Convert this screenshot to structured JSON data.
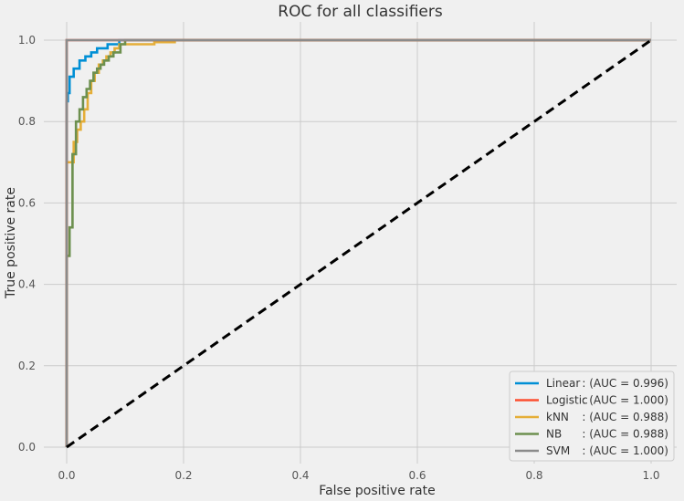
{
  "chart_data": {
    "type": "line",
    "title": "ROC for all classifiers",
    "xlabel": "False positive rate",
    "ylabel": "True positive rate",
    "xlim": [
      0.0,
      1.0
    ],
    "ylim": [
      0.0,
      1.0
    ],
    "xticks": [
      "0.0",
      "0.2",
      "0.4",
      "0.6",
      "0.8",
      "1.0"
    ],
    "yticks": [
      "0.0",
      "0.2",
      "0.4",
      "0.6",
      "0.8",
      "1.0"
    ],
    "grid": true,
    "legend_position": "lower-right",
    "series": [
      {
        "name": "Linear",
        "auc_label": ": (AUC = 0.996)",
        "color": "#008fd5",
        "x": [
          0.0,
          0.0,
          0.002,
          0.002,
          0.005,
          0.005,
          0.012,
          0.012,
          0.022,
          0.022,
          0.032,
          0.032,
          0.042,
          0.042,
          0.052,
          0.052,
          0.07,
          0.07,
          0.09,
          0.09,
          1.0
        ],
        "y": [
          0.0,
          0.85,
          0.85,
          0.87,
          0.87,
          0.91,
          0.91,
          0.93,
          0.93,
          0.95,
          0.95,
          0.96,
          0.96,
          0.97,
          0.97,
          0.98,
          0.98,
          0.99,
          0.99,
          1.0,
          1.0
        ]
      },
      {
        "name": "Logistic",
        "auc_label": ": (AUC = 1.000)",
        "color": "#fc4f30",
        "x": [
          0.0,
          0.0,
          1.0
        ],
        "y": [
          0.0,
          1.0,
          1.0
        ]
      },
      {
        "name": "kNN",
        "auc_label": ": (AUC = 0.988)",
        "color": "#e5ae38",
        "x": [
          0.0,
          0.0,
          0.012,
          0.012,
          0.018,
          0.018,
          0.024,
          0.024,
          0.03,
          0.03,
          0.036,
          0.036,
          0.042,
          0.042,
          0.048,
          0.048,
          0.055,
          0.055,
          0.062,
          0.062,
          0.068,
          0.068,
          0.075,
          0.075,
          0.082,
          0.082,
          0.09,
          0.09,
          0.15,
          0.15,
          0.185,
          0.185,
          1.0
        ],
        "y": [
          0.0,
          0.7,
          0.7,
          0.75,
          0.75,
          0.78,
          0.78,
          0.8,
          0.8,
          0.83,
          0.83,
          0.87,
          0.87,
          0.9,
          0.9,
          0.92,
          0.92,
          0.94,
          0.94,
          0.95,
          0.95,
          0.96,
          0.96,
          0.97,
          0.97,
          0.98,
          0.98,
          0.99,
          0.99,
          0.995,
          0.995,
          1.0,
          1.0
        ]
      },
      {
        "name": "NB",
        "auc_label": ": (AUC = 0.988)",
        "color": "#6d904f",
        "x": [
          0.0,
          0.0,
          0.005,
          0.005,
          0.01,
          0.01,
          0.016,
          0.016,
          0.022,
          0.022,
          0.028,
          0.028,
          0.034,
          0.034,
          0.04,
          0.04,
          0.046,
          0.046,
          0.052,
          0.052,
          0.058,
          0.058,
          0.064,
          0.064,
          0.072,
          0.072,
          0.08,
          0.08,
          0.092,
          0.092,
          0.1,
          0.1,
          1.0
        ],
        "y": [
          0.0,
          0.47,
          0.47,
          0.54,
          0.54,
          0.72,
          0.72,
          0.8,
          0.8,
          0.83,
          0.83,
          0.86,
          0.86,
          0.88,
          0.88,
          0.9,
          0.9,
          0.92,
          0.92,
          0.93,
          0.93,
          0.94,
          0.94,
          0.95,
          0.95,
          0.96,
          0.96,
          0.97,
          0.97,
          0.99,
          0.99,
          1.0,
          1.0
        ]
      },
      {
        "name": "SVM",
        "auc_label": ": (AUC = 1.000)",
        "color": "#8b8b8b",
        "x": [
          0.0,
          0.0,
          1.0
        ],
        "y": [
          0.0,
          1.0,
          1.0
        ]
      }
    ],
    "reference_line": {
      "x": [
        0.0,
        1.0
      ],
      "y": [
        0.0,
        1.0
      ],
      "color": "#000000",
      "style": "dashed"
    }
  }
}
